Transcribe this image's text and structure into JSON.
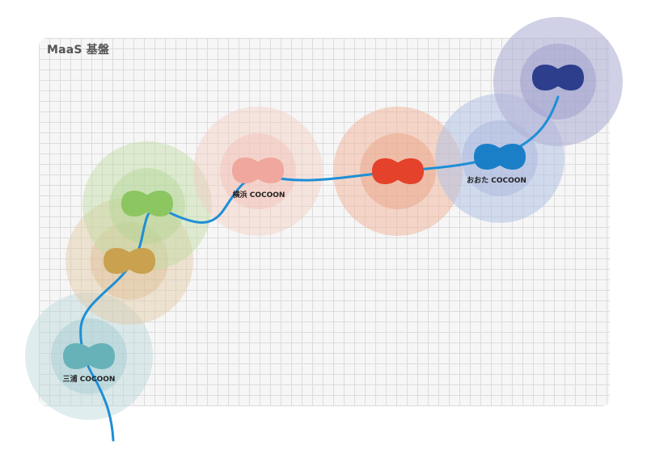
{
  "platform": {
    "title": "MaaS 基盤"
  },
  "nodes": [
    {
      "id": "miura",
      "label": "三浦 COCOON",
      "color": "#66b2b8",
      "halo": "#b9d8da"
    },
    {
      "id": "gold",
      "label": "",
      "color": "#c9a14f",
      "halo": "#e3c8a2"
    },
    {
      "id": "green",
      "label": "",
      "color": "#8cc660",
      "halo": "#bfdca0"
    },
    {
      "id": "yokohama",
      "label": "横浜 COCOON",
      "color": "#f0a79d",
      "halo": "#f4cbc2"
    },
    {
      "id": "red",
      "label": "",
      "color": "#e4422b",
      "halo": "#f0b295"
    },
    {
      "id": "oota",
      "label": "おおた COCOON",
      "color": "#1b7fc7",
      "halo": "#b2c1e4"
    },
    {
      "id": "navy",
      "label": "",
      "color": "#2c3e8c",
      "halo": "#b0b2d6"
    }
  ],
  "connection_color": "#1e8fd6"
}
